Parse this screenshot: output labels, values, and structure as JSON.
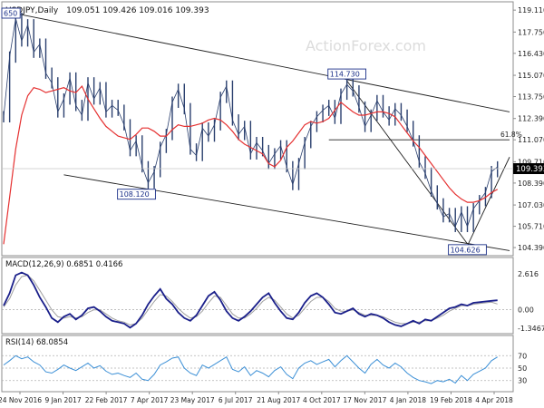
{
  "chart_data": [
    {
      "type": "ohlc",
      "header": {
        "symbol": "USDJPY,Daily",
        "ohlc_values": "109.051 109.426 109.016 109.393"
      },
      "watermark": "ActionForex.com",
      "y_ticks": [
        "119.110",
        "117.750",
        "116.430",
        "115.070",
        "113.750",
        "112.390",
        "111.070",
        "109.710",
        "108.390",
        "107.030",
        "105.710",
        "104.390"
      ],
      "ylim": [
        104.0,
        119.4
      ],
      "current_price": "109.393",
      "series": [
        {
          "name": "price",
          "points": [
            [
              0,
              112.5
            ],
            [
              1,
              116.2
            ],
            [
              2,
              118.6
            ],
            [
              3,
              117.2
            ],
            [
              4,
              118.2
            ],
            [
              5,
              116.5
            ],
            [
              6,
              117.0
            ],
            [
              7,
              115.2
            ],
            [
              8,
              114.6
            ],
            [
              9,
              112.8
            ],
            [
              10,
              113.6
            ],
            [
              11,
              114.9
            ],
            [
              12,
              113.2
            ],
            [
              13,
              112.6
            ],
            [
              14,
              114.6
            ],
            [
              15,
              113.6
            ],
            [
              16,
              114.3
            ],
            [
              17,
              112.8
            ],
            [
              18,
              113.2
            ],
            [
              19,
              112.9
            ],
            [
              20,
              112.0
            ],
            [
              21,
              110.4
            ],
            [
              22,
              111.0
            ],
            [
              23,
              109.4
            ],
            [
              24,
              108.4
            ],
            [
              25,
              109.1
            ],
            [
              26,
              110.6
            ],
            [
              27,
              111.4
            ],
            [
              28,
              113.4
            ],
            [
              29,
              114.2
            ],
            [
              30,
              113.0
            ],
            [
              31,
              110.5
            ],
            [
              32,
              110.1
            ],
            [
              33,
              111.8
            ],
            [
              34,
              111.3
            ],
            [
              35,
              112.0
            ],
            [
              36,
              113.7
            ],
            [
              37,
              114.4
            ],
            [
              38,
              112.3
            ],
            [
              39,
              111.4
            ],
            [
              40,
              111.9
            ],
            [
              41,
              110.2
            ],
            [
              42,
              110.9
            ],
            [
              43,
              110.4
            ],
            [
              44,
              109.6
            ],
            [
              45,
              110.2
            ],
            [
              46,
              110.7
            ],
            [
              47,
              109.4
            ],
            [
              48,
              108.3
            ],
            [
              49,
              109.6
            ],
            [
              50,
              110.9
            ],
            [
              51,
              111.9
            ],
            [
              52,
              112.5
            ],
            [
              53,
              112.9
            ],
            [
              54,
              113.2
            ],
            [
              55,
              112.4
            ],
            [
              56,
              113.9
            ],
            [
              57,
              114.5
            ],
            [
              58,
              114.1
            ],
            [
              59,
              113.1
            ],
            [
              60,
              111.9
            ],
            [
              61,
              112.6
            ],
            [
              62,
              113.5
            ],
            [
              63,
              112.8
            ],
            [
              64,
              112.3
            ],
            [
              65,
              113.0
            ],
            [
              66,
              112.6
            ],
            [
              67,
              111.9
            ],
            [
              68,
              111.0
            ],
            [
              69,
              109.7
            ],
            [
              70,
              109.0
            ],
            [
              71,
              107.9
            ],
            [
              72,
              107.1
            ],
            [
              73,
              106.3
            ],
            [
              74,
              106.5
            ],
            [
              75,
              105.7
            ],
            [
              76,
              106.6
            ],
            [
              77,
              105.7
            ],
            [
              78,
              106.8
            ],
            [
              79,
              107.3
            ],
            [
              80,
              107.8
            ],
            [
              81,
              109.1
            ],
            [
              82,
              109.39
            ]
          ]
        },
        {
          "name": "ma",
          "points": [
            [
              0,
              104.6
            ],
            [
              1,
              107.5
            ],
            [
              2,
              110.5
            ],
            [
              3,
              112.6
            ],
            [
              4,
              113.8
            ],
            [
              5,
              114.3
            ],
            [
              6,
              114.2
            ],
            [
              7,
              114.0
            ],
            [
              8,
              114.1
            ],
            [
              9,
              114.2
            ],
            [
              10,
              114.3
            ],
            [
              11,
              114.1
            ],
            [
              12,
              114.0
            ],
            [
              13,
              114.4
            ],
            [
              14,
              113.6
            ],
            [
              15,
              113.0
            ],
            [
              16,
              112.4
            ],
            [
              17,
              111.9
            ],
            [
              18,
              111.6
            ],
            [
              19,
              111.3
            ],
            [
              20,
              111.2
            ],
            [
              21,
              111.1
            ],
            [
              22,
              111.4
            ],
            [
              23,
              111.8
            ],
            [
              24,
              111.8
            ],
            [
              25,
              111.6
            ],
            [
              26,
              111.3
            ],
            [
              27,
              111.3
            ],
            [
              28,
              111.7
            ],
            [
              29,
              112.0
            ],
            [
              30,
              111.9
            ],
            [
              31,
              111.9
            ],
            [
              32,
              112.0
            ],
            [
              33,
              112.1
            ],
            [
              34,
              112.3
            ],
            [
              35,
              112.4
            ],
            [
              36,
              112.3
            ],
            [
              37,
              112.0
            ],
            [
              38,
              111.6
            ],
            [
              39,
              111.1
            ],
            [
              40,
              110.8
            ],
            [
              41,
              110.6
            ],
            [
              42,
              110.4
            ],
            [
              43,
              110.2
            ],
            [
              44,
              109.6
            ],
            [
              45,
              109.4
            ],
            [
              46,
              109.8
            ],
            [
              47,
              110.6
            ],
            [
              48,
              111.0
            ],
            [
              49,
              111.5
            ],
            [
              50,
              112.0
            ],
            [
              51,
              112.2
            ],
            [
              52,
              112.1
            ],
            [
              53,
              112.2
            ],
            [
              54,
              112.4
            ],
            [
              55,
              112.9
            ],
            [
              56,
              113.4
            ],
            [
              57,
              113.1
            ],
            [
              58,
              112.8
            ],
            [
              59,
              112.6
            ],
            [
              60,
              112.6
            ],
            [
              61,
              112.7
            ],
            [
              62,
              112.8
            ],
            [
              63,
              112.8
            ],
            [
              64,
              112.7
            ],
            [
              65,
              112.5
            ],
            [
              66,
              112.0
            ],
            [
              67,
              111.5
            ],
            [
              68,
              111.0
            ],
            [
              69,
              110.6
            ],
            [
              70,
              110.1
            ],
            [
              71,
              109.6
            ],
            [
              72,
              109.1
            ],
            [
              73,
              108.6
            ],
            [
              74,
              108.1
            ],
            [
              75,
              107.7
            ],
            [
              76,
              107.4
            ],
            [
              77,
              107.2
            ],
            [
              78,
              107.2
            ],
            [
              79,
              107.3
            ],
            [
              80,
              107.5
            ],
            [
              81,
              107.8
            ],
            [
              82,
              108.0
            ]
          ]
        }
      ],
      "annotations": [
        {
          "text": "650",
          "x": 0,
          "y": 118.7
        },
        {
          "text": "108.120",
          "x": 24,
          "y": 108.12
        },
        {
          "text": "114.730",
          "x": 57,
          "y": 114.73
        },
        {
          "text": "104.626",
          "x": 77,
          "y": 104.626
        },
        {
          "text": "61.8%",
          "x": 80,
          "y": 111.07
        }
      ],
      "trendlines": [
        {
          "from": [
            2,
            118.9
          ],
          "to": [
            84,
            112.8
          ]
        },
        {
          "from": [
            10,
            108.9
          ],
          "to": [
            84,
            104.2
          ]
        },
        {
          "from": [
            57,
            114.73
          ],
          "to": [
            77,
            104.626
          ]
        },
        {
          "from": [
            77,
            104.5
          ],
          "to": [
            84,
            110.0
          ]
        },
        {
          "from": [
            54,
            111.07
          ],
          "to": [
            84,
            111.07
          ]
        }
      ]
    },
    {
      "type": "line",
      "label": "MACD(12,26,9) 0.6851 0.4166",
      "y_ticks": [
        "2.616",
        "0.00",
        "-1.3467"
      ],
      "ylim": [
        -1.6,
        3.0
      ],
      "series": [
        {
          "name": "macd",
          "values": [
            0.3,
            1.2,
            2.5,
            2.7,
            2.5,
            1.8,
            0.9,
            0.2,
            -0.6,
            -0.9,
            -0.5,
            -0.3,
            -0.7,
            -0.4,
            0.1,
            0.2,
            -0.1,
            -0.5,
            -0.8,
            -0.9,
            -1.0,
            -1.3,
            -1.0,
            -0.4,
            0.4,
            1.0,
            1.5,
            0.8,
            0.4,
            -0.2,
            -0.6,
            -0.8,
            -0.4,
            0.3,
            1.0,
            1.3,
            0.7,
            -0.1,
            -0.6,
            -0.8,
            -0.5,
            -0.1,
            0.4,
            0.9,
            1.2,
            0.5,
            -0.1,
            -0.6,
            -0.7,
            -0.2,
            0.5,
            1.0,
            1.2,
            0.9,
            0.4,
            -0.2,
            -0.3,
            -0.1,
            0.1,
            -0.3,
            -0.5,
            -0.3,
            -0.4,
            -0.6,
            -0.9,
            -1.1,
            -1.2,
            -1.0,
            -0.8,
            -1.0,
            -0.7,
            -0.8,
            -0.5,
            -0.2,
            0.1,
            0.2,
            0.4,
            0.3,
            0.5,
            0.55,
            0.6,
            0.65,
            0.69
          ]
        },
        {
          "name": "signal",
          "values": [
            0.2,
            0.8,
            1.8,
            2.4,
            2.5,
            2.1,
            1.4,
            0.7,
            0.0,
            -0.5,
            -0.6,
            -0.5,
            -0.6,
            -0.5,
            -0.2,
            0.0,
            0.0,
            -0.3,
            -0.6,
            -0.8,
            -0.9,
            -1.1,
            -1.0,
            -0.6,
            0.0,
            0.6,
            1.1,
            1.0,
            0.6,
            0.1,
            -0.3,
            -0.6,
            -0.5,
            -0.1,
            0.5,
            1.0,
            0.9,
            0.3,
            -0.3,
            -0.6,
            -0.6,
            -0.3,
            0.1,
            0.6,
            0.9,
            0.7,
            0.2,
            -0.3,
            -0.6,
            -0.4,
            0.1,
            0.6,
            0.9,
            0.9,
            0.6,
            0.1,
            -0.1,
            -0.1,
            0.0,
            -0.2,
            -0.4,
            -0.4,
            -0.4,
            -0.5,
            -0.7,
            -0.9,
            -1.0,
            -1.0,
            -0.9,
            -0.9,
            -0.8,
            -0.8,
            -0.6,
            -0.4,
            -0.1,
            0.1,
            0.3,
            0.3,
            0.4,
            0.45,
            0.5,
            0.55,
            0.42
          ]
        }
      ]
    },
    {
      "type": "line",
      "label": "RSI(14) 68.0854",
      "y_ticks": [
        "70",
        "50",
        "30"
      ],
      "ylim": [
        15,
        85
      ],
      "series": [
        {
          "name": "rsi",
          "values": [
            55,
            62,
            70,
            65,
            68,
            60,
            55,
            44,
            42,
            48,
            55,
            50,
            46,
            52,
            58,
            50,
            54,
            45,
            40,
            42,
            38,
            35,
            42,
            32,
            30,
            40,
            55,
            60,
            66,
            68,
            50,
            42,
            38,
            55,
            50,
            56,
            62,
            68,
            48,
            44,
            52,
            38,
            46,
            42,
            36,
            46,
            52,
            40,
            33,
            50,
            58,
            62,
            56,
            60,
            64,
            52,
            62,
            70,
            60,
            50,
            42,
            56,
            64,
            55,
            50,
            58,
            52,
            42,
            35,
            30,
            28,
            25,
            30,
            28,
            32,
            26,
            38,
            30,
            40,
            45,
            50,
            62,
            68
          ]
        }
      ]
    }
  ],
  "x_axis": {
    "labels": [
      "24 Nov 2016",
      "9 Jan 2017",
      "22 Feb 2017",
      "7 Apr 2017",
      "23 May 2017",
      "6 Jul 2017",
      "21 Aug 2017",
      "4 Oct 2017",
      "17 Nov 2017",
      "4 Jan 2018",
      "19 Feb 2018",
      "4 Apr 2018"
    ]
  },
  "colors": {
    "price": "#2a3f6e",
    "ma": "#e53030",
    "macd": "#1a1f8a",
    "signal": "#a0a0a0",
    "rsi": "#3b8fd6",
    "trendline": "#202020",
    "annotation_border": "#1a2f88",
    "annotation_text": "#1a2f88"
  }
}
